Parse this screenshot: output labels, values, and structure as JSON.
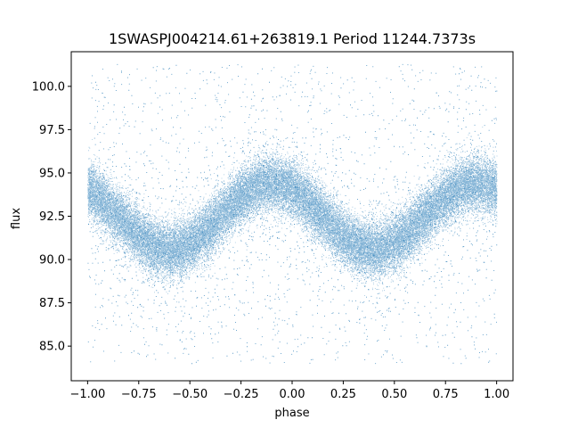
{
  "chart_data": {
    "type": "scatter",
    "title": "1SWASPJ004214.61+263819.1 Period 11244.7373s",
    "xlabel": "phase",
    "ylabel": "flux",
    "xlim": [
      -1.08,
      1.08
    ],
    "ylim": [
      83.0,
      102.0
    ],
    "xticks": [
      -1.0,
      -0.75,
      -0.5,
      -0.25,
      0.0,
      0.25,
      0.5,
      0.75,
      1.0
    ],
    "xtick_labels": [
      "−1.00",
      "−0.75",
      "−0.50",
      "−0.25",
      "0.00",
      "0.25",
      "0.50",
      "0.75",
      "1.00"
    ],
    "yticks": [
      85.0,
      87.5,
      90.0,
      92.5,
      95.0,
      97.5,
      100.0
    ],
    "ytick_labels": [
      "85.0",
      "87.5",
      "90.0",
      "92.5",
      "95.0",
      "97.5",
      "100.0"
    ],
    "grid": false,
    "legend": "none",
    "marker_color": "#1f77b4",
    "series": [
      {
        "model": "sinusoid",
        "mean_flux": 92.5,
        "amplitude": 1.9,
        "maxima_phase": [
          -1.0,
          -0.1,
          0.9
        ],
        "minima_phase": [
          -0.6,
          0.4
        ],
        "band_sigma": 0.8,
        "outlier_range": [
          84.0,
          101.3
        ]
      }
    ]
  }
}
